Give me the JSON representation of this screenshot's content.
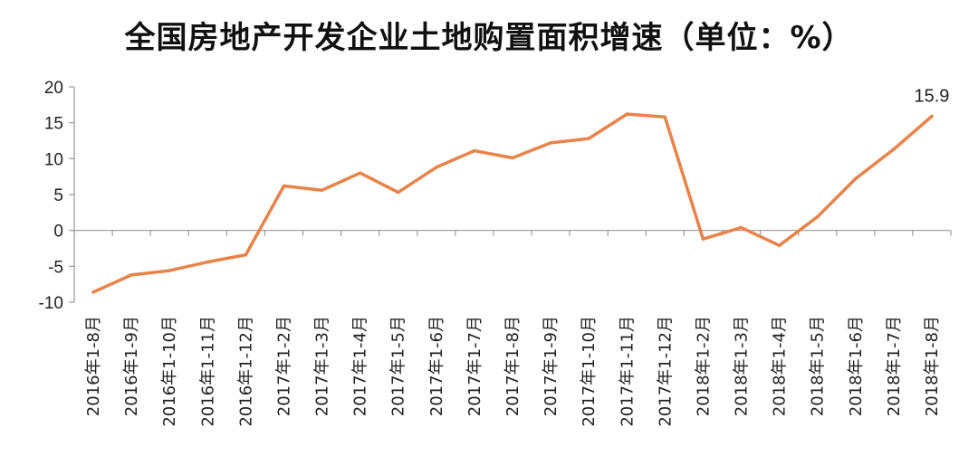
{
  "chart_data": {
    "type": "line",
    "title": "全国房地产开发企业土地购置面积增速（单位：%）",
    "categories": [
      "2016年1-8月",
      "2016年1-9月",
      "2016年1-10月",
      "2016年1-11月",
      "2016年1-12月",
      "2017年1-2月",
      "2017年1-3月",
      "2017年1-4月",
      "2017年1-5月",
      "2017年1-6月",
      "2017年1-7月",
      "2017年1-8月",
      "2017年1-9月",
      "2017年1-10月",
      "2017年1-11月",
      "2017年1-12月",
      "2018年1-2月",
      "2018年1-3月",
      "2018年1-4月",
      "2018年1-5月",
      "2018年1-6月",
      "2018年1-7月",
      "2018年1-8月"
    ],
    "series": [
      {
        "values": [
          -8.6,
          -6.2,
          -5.6,
          -4.4,
          -3.4,
          6.2,
          5.6,
          8.0,
          5.3,
          8.8,
          11.1,
          10.1,
          12.2,
          12.8,
          16.2,
          15.8,
          -1.2,
          0.4,
          -2.1,
          1.9,
          7.2,
          11.3,
          15.9
        ],
        "color": "#e8834a"
      }
    ],
    "data_labels": [
      {
        "index": 22,
        "text": "15.9"
      }
    ],
    "ylim": [
      -10,
      20
    ],
    "yticks": [
      -10,
      -5,
      0,
      5,
      10,
      15,
      20
    ],
    "xlabel": "",
    "ylabel": "",
    "grid": false,
    "legend": "none"
  }
}
